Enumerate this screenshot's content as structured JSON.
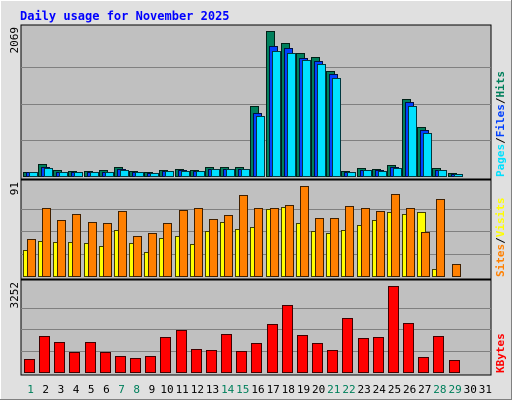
{
  "chart_data": {
    "type": "bar",
    "title": "Daily usage for November 2025",
    "colors": {
      "hits": "#00805c",
      "files": "#0040ff",
      "pages": "#00e0ff",
      "visits": "#ffff00",
      "sites": "#ff8000",
      "kbytes": "#ff0000",
      "title": "#0000ff",
      "weekend": "#00805c",
      "weekday": "#000000",
      "panel_bg": "#c0c0c0",
      "frame_bg": "#e0e0e0"
    },
    "days": [
      "1",
      "2",
      "3",
      "4",
      "5",
      "6",
      "7",
      "8",
      "9",
      "10",
      "11",
      "12",
      "13",
      "14",
      "15",
      "16",
      "17",
      "18",
      "19",
      "20",
      "21",
      "22",
      "23",
      "24",
      "25",
      "26",
      "27",
      "28",
      "29",
      "30",
      "31"
    ],
    "weekend_days": [
      1,
      7,
      8,
      14,
      15,
      21,
      22,
      28,
      29
    ],
    "panels": [
      {
        "id": "hits-files-pages",
        "ymax": 2069,
        "ymax_label": "2069",
        "legend": [
          "Pages",
          "Files",
          "Hits"
        ],
        "series": [
          {
            "key": "hits",
            "values": [
              60,
              170,
              80,
              70,
              70,
              80,
              130,
              70,
              60,
              90,
              100,
              90,
              130,
              130,
              130,
              1000,
              2069,
              1900,
              1750,
              1700,
              1500,
              70,
              110,
              100,
              160,
              1100,
              700,
              110,
              40,
              0,
              0
            ]
          },
          {
            "key": "files",
            "values": [
              50,
              130,
              60,
              55,
              55,
              60,
              100,
              55,
              45,
              70,
              80,
              70,
              100,
              100,
              100,
              900,
              1850,
              1820,
              1680,
              1640,
              1450,
              55,
              85,
              80,
              130,
              1050,
              660,
              90,
              30,
              0,
              0
            ]
          },
          {
            "key": "pages",
            "values": [
              50,
              120,
              55,
              50,
              50,
              55,
              90,
              50,
              40,
              65,
              75,
              65,
              95,
              95,
              95,
              850,
              1780,
              1750,
              1650,
              1600,
              1400,
              50,
              80,
              75,
              120,
              1000,
              620,
              85,
              25,
              0,
              0
            ]
          }
        ]
      },
      {
        "id": "visits-sites",
        "ymax": 91,
        "ymax_label": "91",
        "legend": [
          "Sites",
          "Visits"
        ],
        "series": [
          {
            "key": "visits",
            "values": [
              26,
              35,
              34,
              34,
              33,
              30,
              47,
              33,
              24,
              38,
              40,
              32,
              45,
              55,
              48,
              50,
              68,
              70,
              54,
              45,
              43,
              47,
              52,
              57,
              65,
              63,
              65,
              7,
              0,
              0,
              0
            ]
          },
          {
            "key": "sites",
            "values": [
              37,
              69,
              57,
              63,
              55,
              54,
              66,
              40,
              43,
              54,
              67,
              69,
              58,
              62,
              82,
              69,
              69,
              72,
              91,
              59,
              59,
              71,
              69,
              66,
              83,
              69,
              44,
              78,
              12,
              0,
              0
            ]
          }
        ]
      },
      {
        "id": "kbytes",
        "ymax": 3252,
        "ymax_label": "3252",
        "legend": [
          "KBytes"
        ],
        "series": [
          {
            "key": "kbytes",
            "values": [
              480,
              1350,
              1150,
              760,
              1120,
              760,
              600,
              540,
              590,
              1310,
              1590,
              870,
              830,
              1440,
              800,
              1100,
              1800,
              2520,
              1400,
              1110,
              830,
              2040,
              1270,
              1310,
              3252,
              1840,
              580,
              1380,
              460,
              0,
              0
            ]
          }
        ]
      }
    ]
  }
}
